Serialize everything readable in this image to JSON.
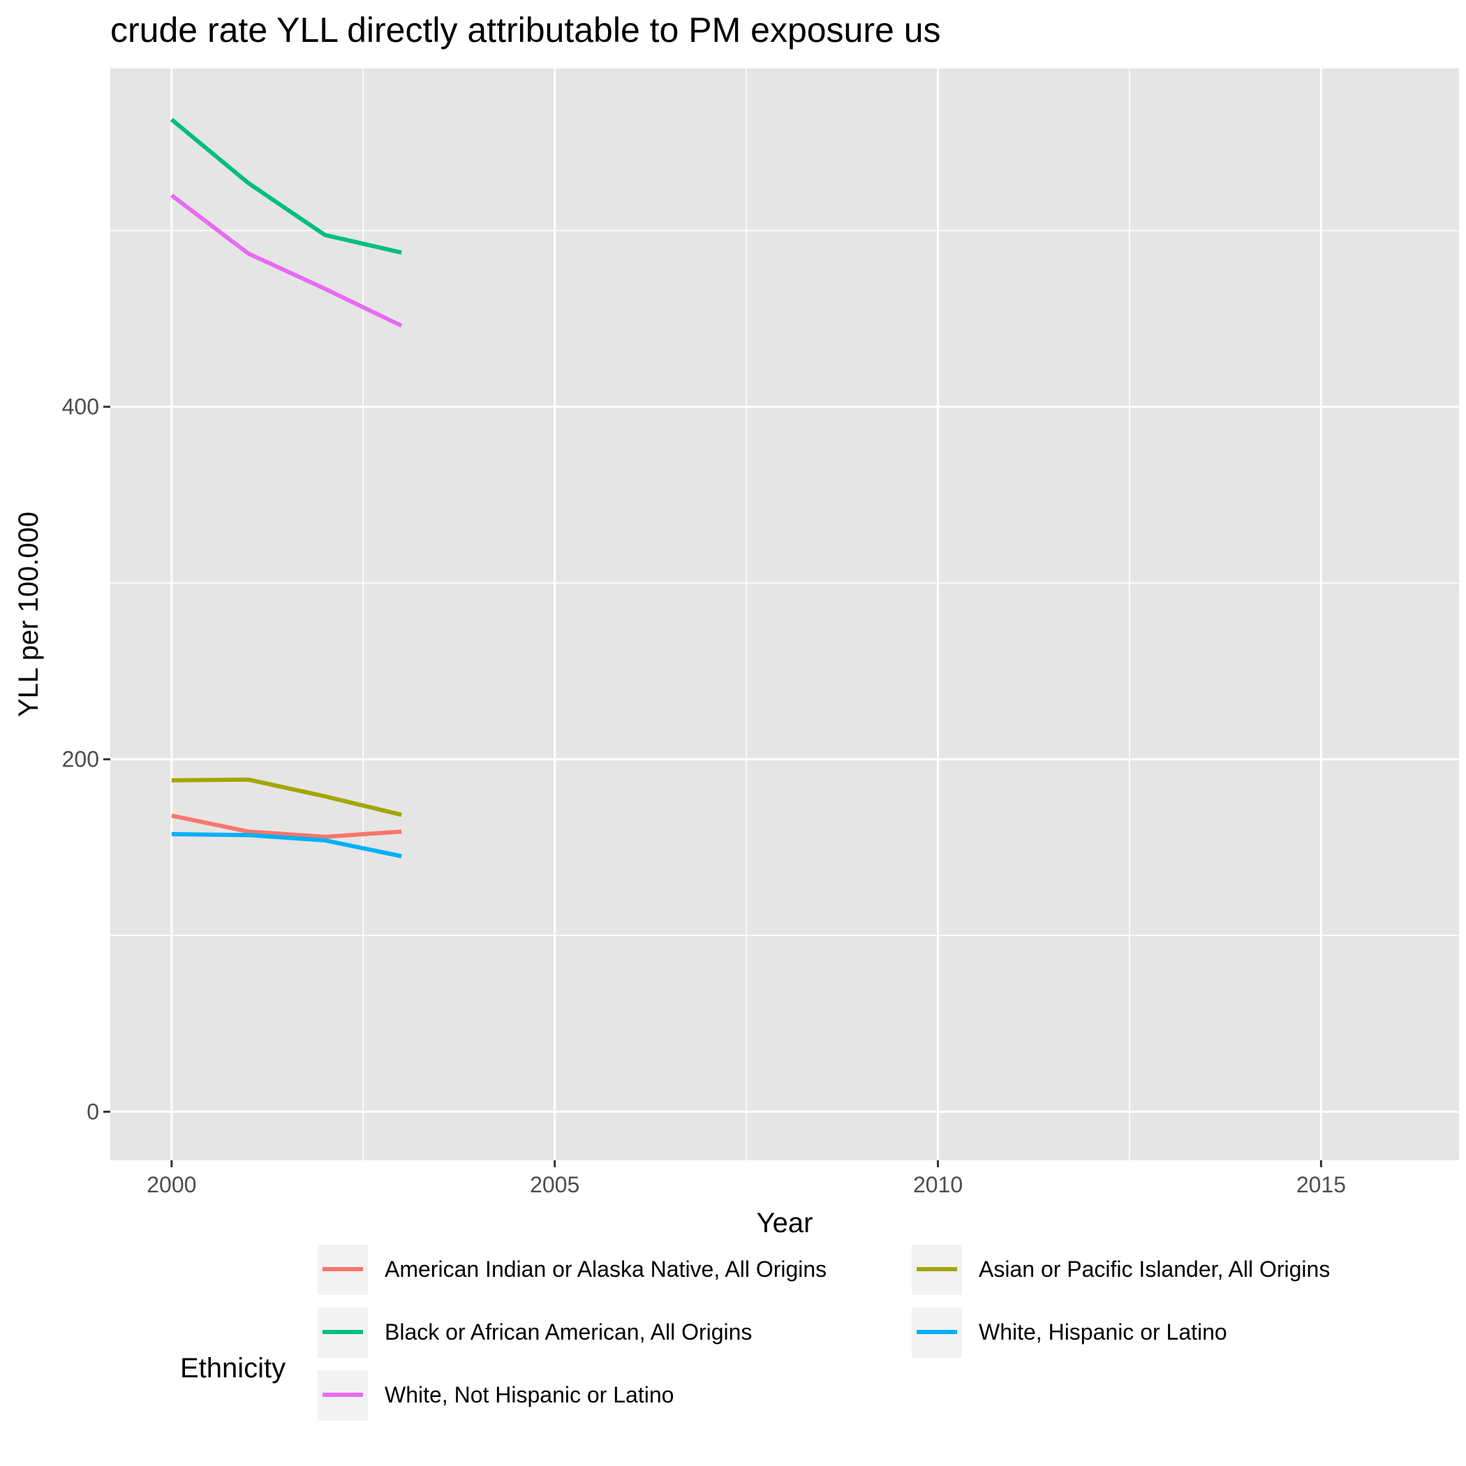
{
  "chart_data": {
    "type": "line",
    "title": "crude rate YLL directly attributable to PM exposure us",
    "xlabel": "Year",
    "ylabel": "YLL per 100.000",
    "xlim": [
      1999.2,
      2016.8
    ],
    "ylim": [
      -27.5,
      592
    ],
    "x_ticks": [
      2000,
      2005,
      2010,
      2015
    ],
    "x_tick_labels": [
      "2000",
      "2005",
      "2010",
      "2015"
    ],
    "x_minor": [
      2002.5,
      2007.5,
      2012.5
    ],
    "y_ticks": [
      0,
      200,
      400
    ],
    "y_tick_labels": [
      "0",
      "200",
      "400"
    ],
    "y_minor": [
      100,
      300,
      500
    ],
    "grid": true,
    "legend": {
      "title": "Ethnicity",
      "position": "bottom",
      "columns": 2
    },
    "series": [
      {
        "name": "American Indian or Alaska Native, All Origins",
        "color": "#F8766D",
        "x": [
          2000,
          2001,
          2002,
          2003
        ],
        "y": [
          168,
          159,
          156,
          159
        ]
      },
      {
        "name": "Asian or Pacific Islander, All Origins",
        "color": "#A3A500",
        "x": [
          2000,
          2001,
          2002,
          2003
        ],
        "y": [
          188,
          188.5,
          179,
          168.5
        ]
      },
      {
        "name": "Black or African American, All Origins",
        "color": "#00BF7D",
        "x": [
          2000,
          2001,
          2002,
          2003
        ],
        "y": [
          563,
          527,
          497.5,
          487.5
        ]
      },
      {
        "name": "White, Hispanic or Latino",
        "color": "#00B0F6",
        "x": [
          2000,
          2001,
          2002,
          2003
        ],
        "y": [
          157.5,
          157,
          154,
          145
        ]
      },
      {
        "name": "White, Not Hispanic or Latino",
        "color": "#E76BF3",
        "x": [
          2000,
          2001,
          2002,
          2003
        ],
        "y": [
          520,
          487,
          467,
          446
        ]
      }
    ]
  }
}
